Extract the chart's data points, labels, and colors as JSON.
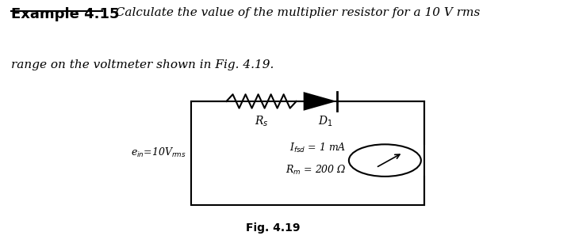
{
  "bg_color": "#ffffff",
  "title_bold": "Example 4.15",
  "title_italic": "  Calculate the value of the multiplier resistor for a 10 V rms",
  "subtitle_italic": "range on the voltmeter shown in Fig. 4.19.",
  "fig_caption": "Fig. 4.19",
  "circuit": {
    "resistor_label": "R$_s$",
    "diode_label": "D$_1$",
    "source_label": "e$_{in}$=10V$_{rms}$",
    "meter_label1": "I$_{fsd}$ = 1 mA",
    "meter_label2": "R$_m$ = 200 Ω"
  }
}
